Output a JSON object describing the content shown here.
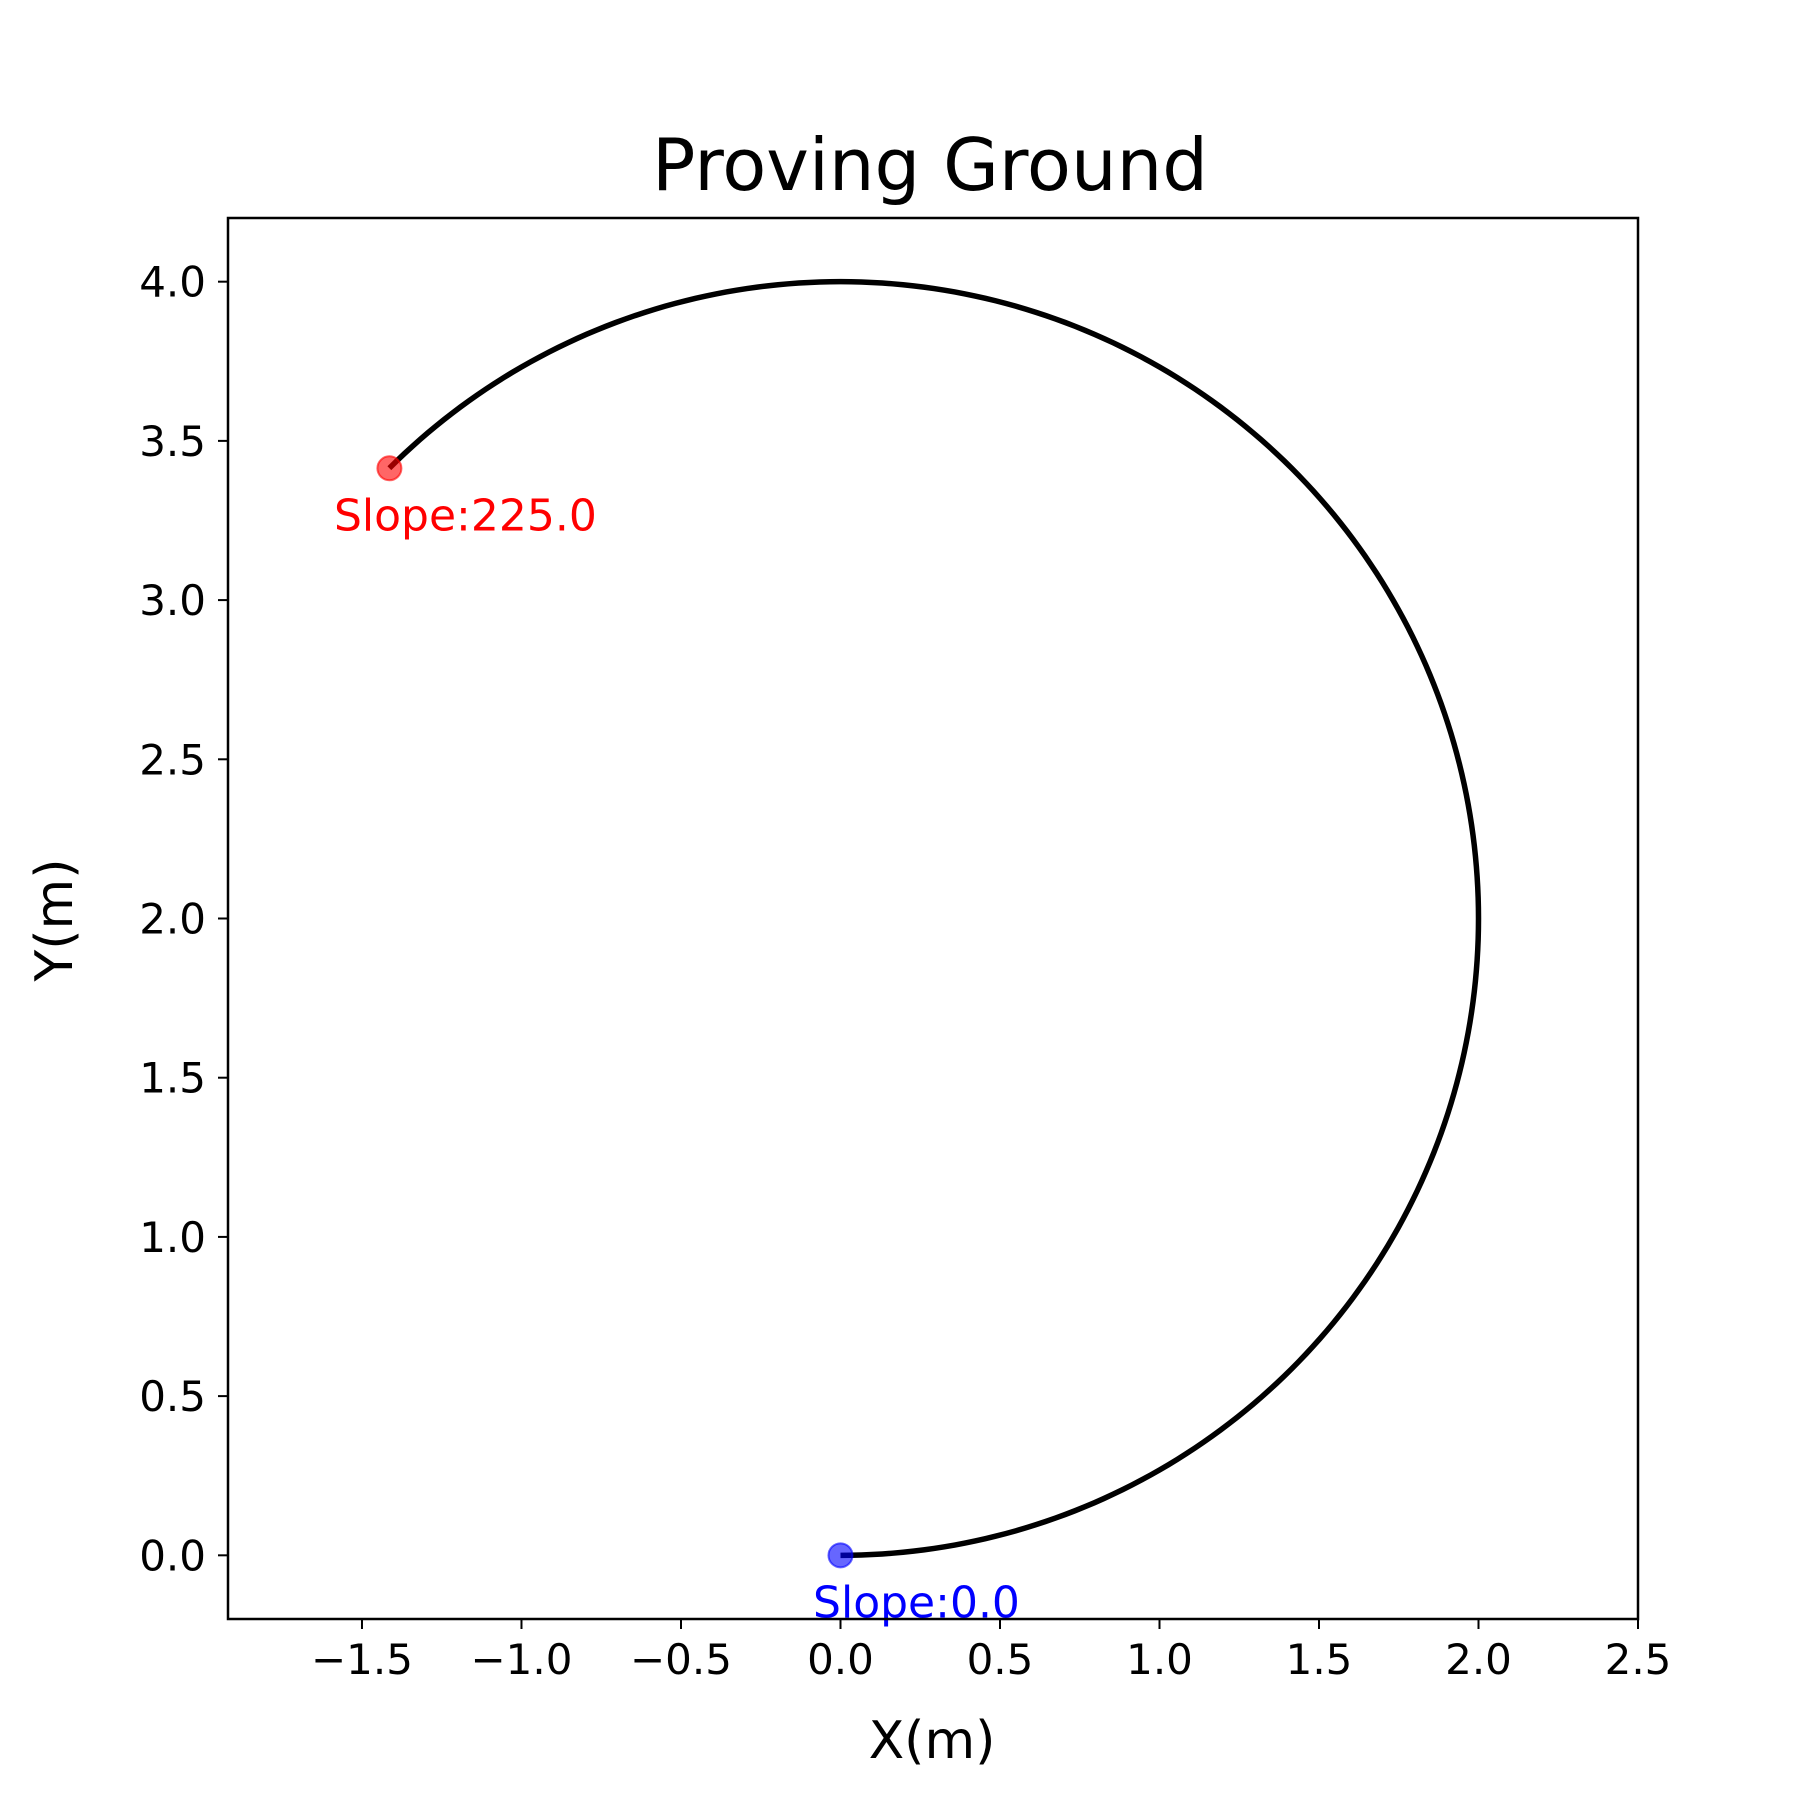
{
  "chart_data": {
    "type": "line",
    "title": "Proving Ground",
    "xlabel": "X(m)",
    "ylabel": "Y(m)",
    "xlim": [
      -1.92,
      2.5
    ],
    "ylim": [
      -0.2,
      4.2
    ],
    "x_ticks": [
      -1.5,
      -1.0,
      -0.5,
      0.0,
      0.5,
      1.0,
      1.5,
      2.0,
      2.5
    ],
    "x_tick_labels": [
      "−1.5",
      "−1.0",
      "−0.5",
      "0.0",
      "0.5",
      "1.0",
      "1.5",
      "2.0",
      "2.5"
    ],
    "y_ticks": [
      0.0,
      0.5,
      1.0,
      1.5,
      2.0,
      2.5,
      3.0,
      3.5,
      4.0
    ],
    "y_tick_labels": [
      "0.0",
      "0.5",
      "1.0",
      "1.5",
      "2.0",
      "2.5",
      "3.0",
      "3.5",
      "4.0"
    ],
    "grid": false,
    "series": [
      {
        "color": "#000000",
        "path": {
          "shape": "circular-arc",
          "center": [
            0.0,
            2.0
          ],
          "radius": 2.0,
          "start_angle_deg": -90,
          "end_angle_deg": 135,
          "direction": "counterclockwise"
        },
        "start_point": [
          0.0,
          0.0
        ],
        "end_point": [
          -1.414,
          3.414
        ]
      }
    ],
    "markers": [
      {
        "x": 0.0,
        "y": 0.0,
        "color": "#0000ff"
      },
      {
        "x": -1.414,
        "y": 3.414,
        "color": "#ff0000"
      }
    ],
    "annotations": [
      {
        "text": "Slope:0.0",
        "x": 0.0,
        "y": 0.0,
        "color": "#0000ff"
      },
      {
        "text": "Slope:225.0",
        "x": -1.414,
        "y": 3.414,
        "color": "#ff0000"
      }
    ]
  }
}
